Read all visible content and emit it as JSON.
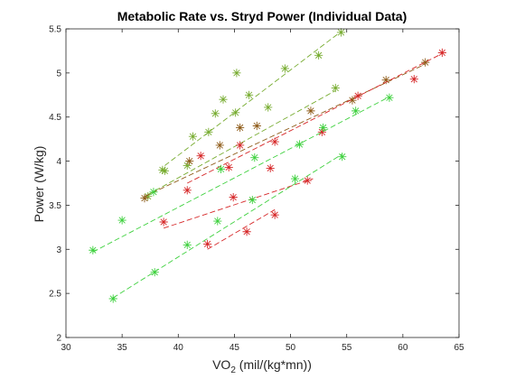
{
  "chart_data": {
    "type": "scatter",
    "title": "Metabolic Rate vs. Stryd Power (Individual Data)",
    "xlabel_main": "VO",
    "xlabel_sub": "2",
    "xlabel_rest": " (mil/(kg*mn))",
    "ylabel": "Power (W/kg)",
    "xlim": [
      30,
      65
    ],
    "ylim": [
      2,
      5.5
    ],
    "xticks": [
      30,
      35,
      40,
      45,
      50,
      55,
      60,
      65
    ],
    "yticks": [
      2,
      2.5,
      3,
      3.5,
      4,
      4.5,
      5,
      5.5
    ],
    "grid": false,
    "legend": "none",
    "marker": "asterisk",
    "line_style": "dashed",
    "series": [
      {
        "color": "#77ac30",
        "points": [
          [
            37.3,
            3.6
          ],
          [
            38.6,
            3.9
          ],
          [
            40.8,
            3.95
          ],
          [
            42.7,
            4.33
          ],
          [
            45.1,
            4.55
          ],
          [
            48.0,
            4.61
          ],
          [
            54.0,
            4.83
          ]
        ],
        "fit": [
          [
            37.3,
            3.62
          ],
          [
            54.0,
            4.8
          ]
        ]
      },
      {
        "color": "#77ac30",
        "points": [
          [
            38.8,
            3.89
          ],
          [
            41.3,
            4.28
          ],
          [
            43.3,
            4.54
          ],
          [
            44.0,
            4.7
          ],
          [
            45.2,
            5.0
          ],
          [
            46.3,
            4.75
          ],
          [
            49.5,
            5.05
          ],
          [
            52.5,
            5.2
          ],
          [
            54.5,
            5.46
          ]
        ],
        "fit": [
          [
            38.8,
            3.95
          ],
          [
            54.5,
            5.47
          ]
        ]
      },
      {
        "color": "#8f5c1a",
        "points": [
          [
            37.0,
            3.58
          ],
          [
            41.0,
            4.0
          ],
          [
            43.7,
            4.18
          ],
          [
            45.5,
            4.38
          ],
          [
            47.0,
            4.4
          ],
          [
            51.8,
            4.57
          ],
          [
            55.5,
            4.69
          ],
          [
            58.5,
            4.92
          ],
          [
            62.0,
            5.12
          ]
        ],
        "fit": [
          [
            37.0,
            3.6
          ],
          [
            62.0,
            5.1
          ]
        ]
      },
      {
        "color": "#d62728",
        "points": [
          [
            40.8,
            3.67
          ],
          [
            42.0,
            4.06
          ],
          [
            44.5,
            3.93
          ],
          [
            45.5,
            4.18
          ],
          [
            48.6,
            4.22
          ],
          [
            52.8,
            4.33
          ],
          [
            56.0,
            4.74
          ],
          [
            61.0,
            4.93
          ],
          [
            63.5,
            5.23
          ]
        ],
        "fit": [
          [
            40.8,
            3.75
          ],
          [
            63.5,
            5.22
          ]
        ]
      },
      {
        "color": "#d62728",
        "points": [
          [
            38.7,
            3.31
          ],
          [
            44.9,
            3.59
          ],
          [
            48.2,
            3.92
          ],
          [
            51.5,
            3.78
          ]
        ],
        "fit": [
          [
            38.7,
            3.24
          ],
          [
            52.0,
            3.8
          ]
        ]
      },
      {
        "color": "#d62728",
        "points": [
          [
            42.6,
            3.06
          ],
          [
            46.1,
            3.2
          ],
          [
            48.6,
            3.39
          ]
        ],
        "fit": [
          [
            42.6,
            3.0
          ],
          [
            48.6,
            3.45
          ]
        ]
      },
      {
        "color": "#3fd13f",
        "points": [
          [
            32.4,
            2.99
          ],
          [
            35.0,
            3.33
          ],
          [
            37.8,
            3.65
          ],
          [
            43.8,
            3.91
          ],
          [
            46.8,
            4.04
          ],
          [
            50.8,
            4.19
          ],
          [
            52.9,
            4.38
          ],
          [
            55.8,
            4.57
          ],
          [
            58.8,
            4.72
          ]
        ],
        "fit": [
          [
            32.4,
            2.97
          ],
          [
            58.8,
            4.73
          ]
        ]
      },
      {
        "color": "#3fd13f",
        "points": [
          [
            34.2,
            2.44
          ],
          [
            37.9,
            2.74
          ],
          [
            40.8,
            3.05
          ],
          [
            43.5,
            3.32
          ],
          [
            46.6,
            3.56
          ],
          [
            50.4,
            3.8
          ],
          [
            54.6,
            4.05
          ]
        ],
        "fit": [
          [
            34.2,
            2.45
          ],
          [
            54.6,
            4.08
          ]
        ]
      }
    ]
  }
}
